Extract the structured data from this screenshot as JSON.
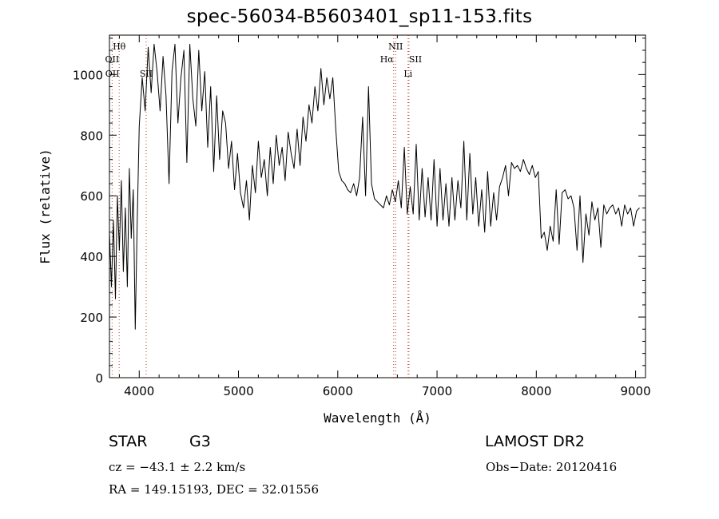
{
  "chart_data": {
    "type": "line",
    "title": "spec-56034-B5603401_sp11-153.fits",
    "xlabel": "Wavelength (Å)",
    "ylabel": "Flux (relative)",
    "xlim": [
      3700,
      9100
    ],
    "ylim": [
      0,
      1130
    ],
    "xticks": [
      4000,
      5000,
      6000,
      7000,
      8000,
      9000
    ],
    "yticks": [
      0,
      200,
      400,
      600,
      800,
      1000
    ],
    "xtick_labels": [
      "4000",
      "5000",
      "6000",
      "7000",
      "8000",
      "9000"
    ],
    "ytick_labels": [
      "0",
      "200",
      "400",
      "600",
      "800",
      "1000"
    ],
    "grid": false,
    "series": [
      {
        "color": "#000000",
        "x": [
          3700,
          3720,
          3740,
          3760,
          3780,
          3800,
          3820,
          3840,
          3860,
          3880,
          3900,
          3920,
          3940,
          3960,
          3980,
          4000,
          4030,
          4060,
          4090,
          4120,
          4150,
          4180,
          4210,
          4240,
          4270,
          4300,
          4330,
          4360,
          4390,
          4420,
          4450,
          4480,
          4510,
          4540,
          4570,
          4600,
          4630,
          4660,
          4690,
          4720,
          4750,
          4780,
          4810,
          4840,
          4870,
          4900,
          4930,
          4960,
          4990,
          5020,
          5050,
          5080,
          5110,
          5140,
          5170,
          5200,
          5230,
          5260,
          5290,
          5320,
          5350,
          5380,
          5410,
          5440,
          5470,
          5500,
          5530,
          5560,
          5590,
          5620,
          5650,
          5680,
          5710,
          5740,
          5770,
          5800,
          5830,
          5860,
          5890,
          5920,
          5950,
          5980,
          6010,
          6040,
          6070,
          6100,
          6130,
          6160,
          6190,
          6220,
          6250,
          6280,
          6310,
          6340,
          6370,
          6400,
          6430,
          6460,
          6490,
          6520,
          6550,
          6580,
          6610,
          6640,
          6670,
          6700,
          6730,
          6760,
          6790,
          6820,
          6850,
          6880,
          6910,
          6940,
          6970,
          7000,
          7030,
          7060,
          7090,
          7120,
          7150,
          7180,
          7210,
          7240,
          7270,
          7300,
          7330,
          7360,
          7390,
          7420,
          7450,
          7480,
          7510,
          7540,
          7570,
          7600,
          7630,
          7660,
          7690,
          7720,
          7750,
          7780,
          7810,
          7840,
          7870,
          7900,
          7930,
          7960,
          7990,
          8020,
          8050,
          8080,
          8110,
          8140,
          8170,
          8200,
          8230,
          8260,
          8290,
          8320,
          8350,
          8380,
          8410,
          8440,
          8470,
          8500,
          8530,
          8560,
          8590,
          8620,
          8650,
          8680,
          8710,
          8740,
          8770,
          8800,
          8830,
          8860,
          8890,
          8920,
          8950,
          8980,
          9010,
          9040
        ],
        "y": [
          480,
          300,
          520,
          260,
          600,
          420,
          650,
          350,
          560,
          300,
          690,
          460,
          620,
          160,
          520,
          830,
          990,
          880,
          1090,
          940,
          1100,
          1010,
          880,
          1060,
          930,
          640,
          1010,
          1100,
          840,
          990,
          1080,
          710,
          1100,
          920,
          830,
          1080,
          880,
          1010,
          760,
          960,
          680,
          930,
          720,
          880,
          840,
          690,
          780,
          620,
          740,
          610,
          560,
          650,
          520,
          700,
          610,
          780,
          660,
          720,
          600,
          760,
          640,
          800,
          700,
          760,
          650,
          810,
          740,
          690,
          820,
          700,
          860,
          780,
          900,
          840,
          960,
          880,
          1020,
          900,
          990,
          920,
          990,
          820,
          680,
          650,
          640,
          620,
          610,
          640,
          600,
          660,
          860,
          600,
          960,
          640,
          590,
          580,
          570,
          560,
          600,
          570,
          620,
          580,
          650,
          560,
          760,
          540,
          630,
          540,
          770,
          520,
          690,
          530,
          660,
          520,
          720,
          500,
          690,
          520,
          640,
          500,
          660,
          520,
          650,
          560,
          780,
          520,
          740,
          540,
          660,
          500,
          620,
          480,
          680,
          500,
          610,
          520,
          630,
          660,
          700,
          600,
          710,
          690,
          700,
          680,
          720,
          690,
          670,
          700,
          660,
          680,
          460,
          480,
          420,
          500,
          450,
          620,
          440,
          610,
          620,
          590,
          600,
          560,
          420,
          600,
          380,
          540,
          470,
          580,
          520,
          560,
          430,
          570,
          540,
          560,
          570,
          540,
          560,
          500,
          570,
          540,
          560,
          500,
          550,
          560
        ],
        "lw": 1
      }
    ],
    "annotations": [
      {
        "label": "Hθ",
        "x": 3798
      },
      {
        "label": "OII",
        "x": 3727
      },
      {
        "label": "OII",
        "x": 3729
      },
      {
        "label": "SII",
        "x": 4070
      },
      {
        "label": "NII",
        "x": 6583
      },
      {
        "label": "Hα",
        "x": 6563
      },
      {
        "label": "SII",
        "x": 6717
      },
      {
        "label": "Li",
        "x": 6708
      }
    ]
  },
  "footer": {
    "class_label": "STAR",
    "subclass": "G3",
    "survey": "LAMOST DR2",
    "cz": "cz = −43.1 ± 2.2 km/s",
    "obs_date": "Obs−Date: 20120416",
    "coords": "RA = 149.15193, DEC =  32.01556"
  }
}
